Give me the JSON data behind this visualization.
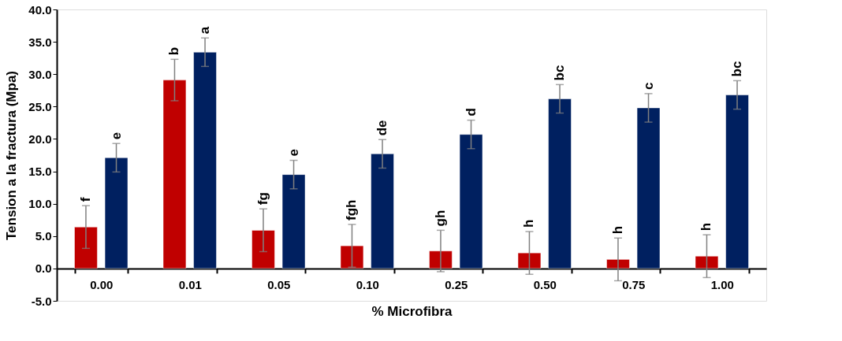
{
  "chart_data": {
    "type": "bar",
    "xlabel": "% Microfibra",
    "ylabel": "Tension a la fractura (Mpa)",
    "categories": [
      "0.00",
      "0.01",
      "0.05",
      "0.10",
      "0.25",
      "0.50",
      "0.75",
      "1.00"
    ],
    "series": [
      {
        "color": "#c00000",
        "values": [
          6.4,
          29.1,
          5.9,
          3.5,
          2.7,
          2.4,
          1.4,
          1.9
        ],
        "errors": [
          3.3,
          3.2,
          3.3,
          3.3,
          3.2,
          3.3,
          3.3,
          3.3
        ],
        "value_labels": [
          "f",
          "b",
          "fg",
          "fgh",
          "gh",
          "h",
          "h",
          "h"
        ]
      },
      {
        "color": "#002060",
        "values": [
          17.1,
          33.4,
          14.5,
          17.7,
          20.7,
          26.2,
          24.8,
          26.8
        ],
        "errors": [
          2.2,
          2.2,
          2.2,
          2.2,
          2.2,
          2.2,
          2.2,
          2.2
        ],
        "value_labels": [
          "e",
          "a",
          "e",
          "de",
          "d",
          "bc",
          "c",
          "bc"
        ]
      }
    ],
    "ylim": [
      -5,
      40
    ],
    "yticks": [
      {
        "value": -5,
        "label": "-5.0"
      },
      {
        "value": 0,
        "label": "0.0"
      },
      {
        "value": 5,
        "label": "5.0"
      },
      {
        "value": 10,
        "label": "10.0"
      },
      {
        "value": 15,
        "label": "15.0"
      },
      {
        "value": 20,
        "label": "20.0"
      },
      {
        "value": 25,
        "label": "25.0"
      },
      {
        "value": 30,
        "label": "30.0"
      },
      {
        "value": 35,
        "label": "35.0"
      },
      {
        "value": 40,
        "label": "40.0"
      }
    ],
    "grid": false,
    "legend": false
  }
}
